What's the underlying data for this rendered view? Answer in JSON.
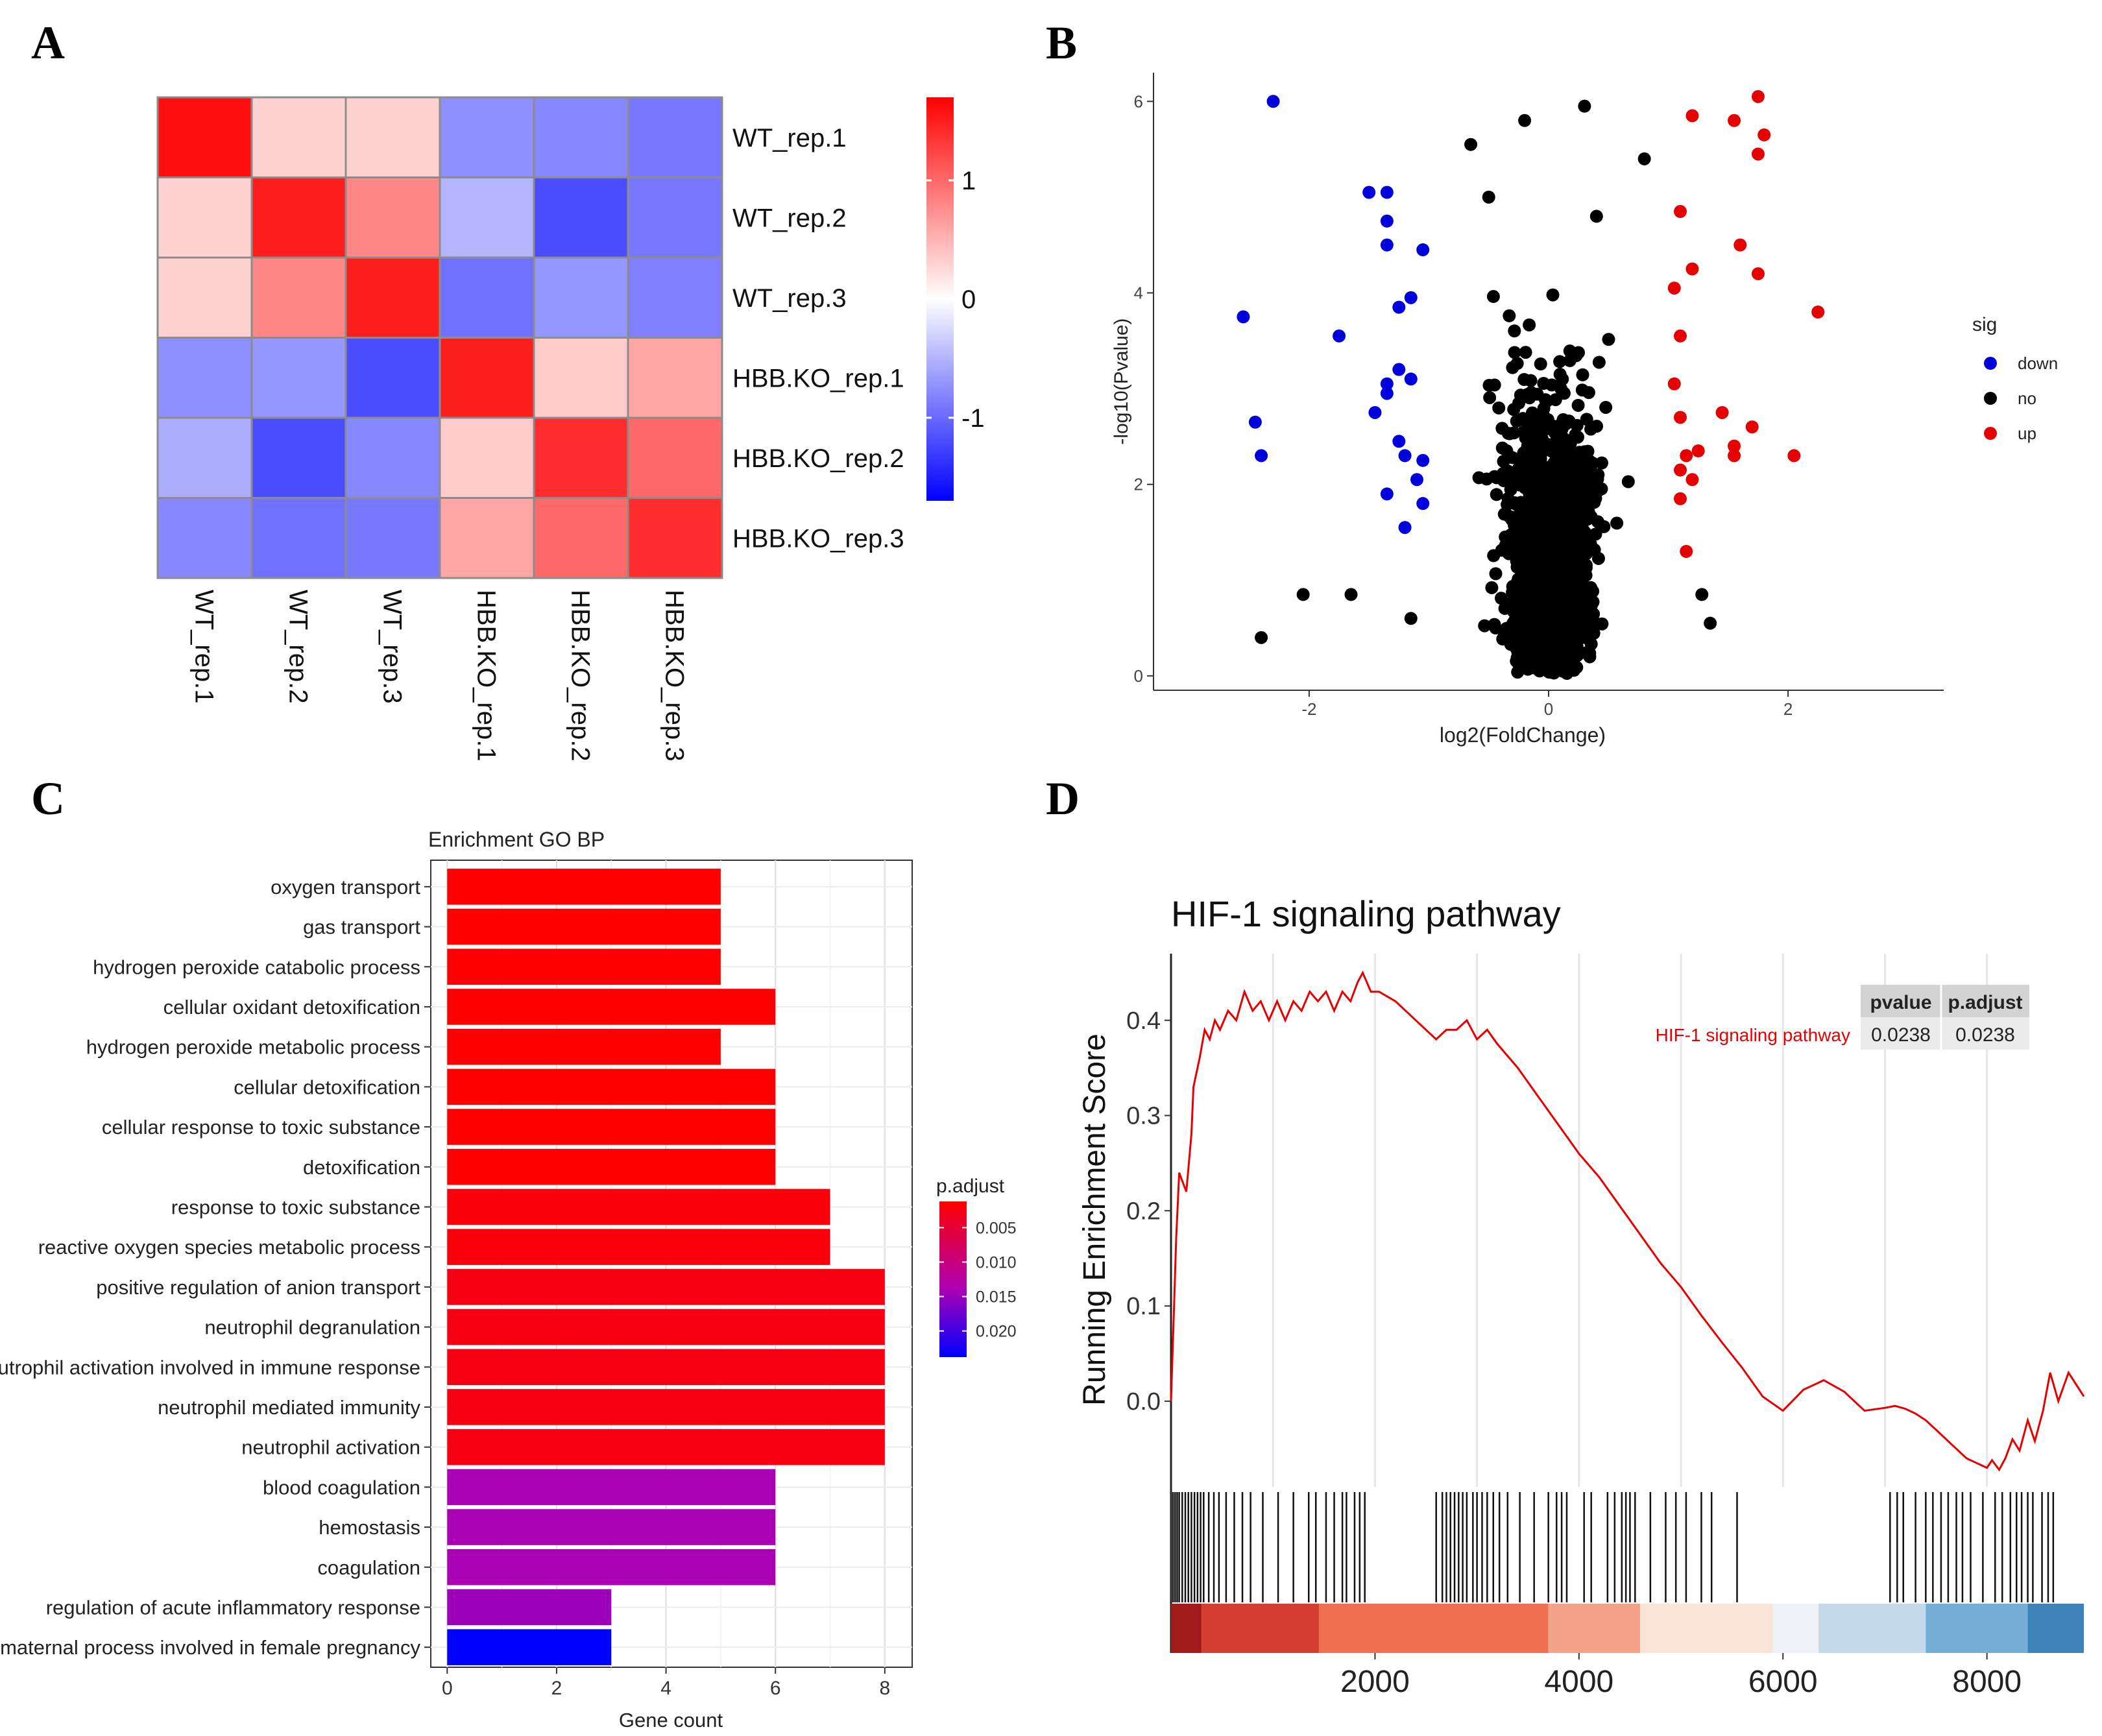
{
  "panel_labels": [
    "A",
    "B",
    "C",
    "D"
  ],
  "colors": {
    "heat_low": "#0000ff",
    "heat_mid": "#ffffff",
    "heat_high": "#ff0000",
    "down": "#0000dd",
    "no": "#000000",
    "up": "#e60000",
    "padj_high": "#ff0000",
    "padj_low": "#0000ff",
    "gsea_line": "#e60000"
  },
  "chart_data": [
    {
      "id": "A",
      "type": "heatmap",
      "title": "",
      "rows": [
        "WT_rep.1",
        "WT_rep.2",
        "WT_rep.3",
        "HBB.KO_rep.1",
        "HBB.KO_rep.2",
        "HBB.KO_rep.3"
      ],
      "cols": [
        "WT_rep.1",
        "WT_rep.2",
        "WT_rep.3",
        "HBB.KO_rep.1",
        "HBB.KO_rep.2",
        "HBB.KO_rep.3"
      ],
      "values": [
        [
          1.6,
          0.3,
          0.3,
          -0.75,
          -0.8,
          -0.9
        ],
        [
          0.3,
          1.5,
          0.8,
          -0.5,
          -1.2,
          -0.9
        ],
        [
          0.3,
          0.8,
          1.5,
          -0.95,
          -0.7,
          -0.85
        ],
        [
          -0.75,
          -0.7,
          -1.2,
          1.5,
          0.35,
          0.6
        ],
        [
          -0.55,
          -1.2,
          -0.8,
          0.35,
          1.4,
          1.0
        ],
        [
          -0.8,
          -0.95,
          -0.9,
          0.6,
          1.0,
          1.4
        ]
      ],
      "colorbar": {
        "range": [
          -1.7,
          1.7
        ],
        "ticks": [
          -1,
          0,
          1
        ],
        "tick_labels": [
          "-1",
          "0",
          "1"
        ]
      }
    },
    {
      "id": "B",
      "type": "scatter",
      "title": "",
      "xlabel": "log2(FoldChange)",
      "ylabel": "-log10(Pvalue)",
      "xlim": [
        -3.3,
        3.3
      ],
      "ylim": [
        -0.15,
        6.3
      ],
      "xticks": [
        -2,
        0,
        2
      ],
      "xtick_labels": [
        "-2",
        "0",
        "2"
      ],
      "yticks": [
        0,
        2,
        4,
        6
      ],
      "ytick_labels": [
        "0",
        "2",
        "4",
        "6"
      ],
      "legend": {
        "title": "sig",
        "position": "right",
        "entries": [
          "down",
          "no",
          "up"
        ]
      },
      "series": [
        {
          "name": "down",
          "points": [
            [
              -2.3,
              6.0
            ],
            [
              -1.5,
              5.05
            ],
            [
              -1.35,
              5.05
            ],
            [
              -1.35,
              4.75
            ],
            [
              -1.35,
              4.5
            ],
            [
              -1.05,
              4.45
            ],
            [
              -1.15,
              3.95
            ],
            [
              -1.25,
              3.85
            ],
            [
              -2.55,
              3.75
            ],
            [
              -1.75,
              3.55
            ],
            [
              -1.25,
              3.2
            ],
            [
              -1.35,
              3.05
            ],
            [
              -1.35,
              2.95
            ],
            [
              -1.45,
              2.75
            ],
            [
              -2.45,
              2.65
            ],
            [
              -1.25,
              2.45
            ],
            [
              -2.4,
              2.3
            ],
            [
              -1.05,
              2.25
            ],
            [
              -1.1,
              2.05
            ],
            [
              -1.35,
              1.9
            ],
            [
              -1.05,
              1.8
            ],
            [
              -1.2,
              1.55
            ],
            [
              -1.2,
              2.3
            ],
            [
              -1.15,
              3.1
            ]
          ]
        },
        {
          "name": "up",
          "points": [
            [
              1.75,
              6.05
            ],
            [
              1.2,
              5.85
            ],
            [
              1.55,
              5.8
            ],
            [
              1.8,
              5.65
            ],
            [
              1.75,
              5.45
            ],
            [
              1.1,
              4.85
            ],
            [
              1.6,
              4.5
            ],
            [
              1.75,
              4.2
            ],
            [
              1.2,
              4.25
            ],
            [
              1.05,
              4.05
            ],
            [
              2.25,
              3.8
            ],
            [
              1.1,
              3.55
            ],
            [
              1.05,
              3.05
            ],
            [
              1.1,
              2.7
            ],
            [
              1.45,
              2.75
            ],
            [
              1.7,
              2.6
            ],
            [
              1.55,
              2.4
            ],
            [
              1.25,
              2.35
            ],
            [
              1.15,
              2.3
            ],
            [
              1.1,
              2.15
            ],
            [
              1.2,
              2.05
            ],
            [
              2.05,
              2.3
            ],
            [
              1.55,
              2.3
            ],
            [
              1.1,
              1.85
            ],
            [
              1.15,
              1.3
            ]
          ]
        },
        {
          "name": "no",
          "generated": true,
          "n": 2200,
          "sample_points": [
            [
              -0.65,
              5.55
            ],
            [
              -0.2,
              5.8
            ],
            [
              0.3,
              5.95
            ],
            [
              -0.5,
              5.0
            ],
            [
              0.8,
              5.4
            ],
            [
              0.4,
              4.8
            ],
            [
              -2.05,
              0.85
            ],
            [
              -1.65,
              0.85
            ],
            [
              -2.4,
              0.4
            ],
            [
              -1.15,
              0.6
            ],
            [
              1.28,
              0.85
            ],
            [
              1.35,
              0.55
            ]
          ]
        }
      ]
    },
    {
      "id": "C",
      "type": "bar",
      "title": "Enrichment GO BP",
      "xlabel": "Gene count",
      "ylabel": "",
      "xlim": [
        -0.3,
        8.5
      ],
      "xticks": [
        0,
        2,
        4,
        6,
        8
      ],
      "xtick_labels": [
        "0",
        "2",
        "4",
        "6",
        "8"
      ],
      "categories": [
        "oxygen transport",
        "gas transport",
        "hydrogen peroxide catabolic process",
        "cellular oxidant detoxification",
        "hydrogen peroxide metabolic process",
        "cellular detoxification",
        "cellular response to toxic substance",
        "detoxification",
        "response to toxic substance",
        "reactive oxygen species metabolic process",
        "positive regulation of anion transport",
        "neutrophil degranulation",
        "neutrophil activation involved in immune response",
        "neutrophil mediated immunity",
        "neutrophil activation",
        "blood coagulation",
        "hemostasis",
        "coagulation",
        "regulation of acute inflammatory response",
        "maternal process involved in female pregnancy"
      ],
      "values": [
        5,
        5,
        5,
        6,
        5,
        6,
        6,
        6,
        7,
        7,
        8,
        8,
        8,
        8,
        8,
        6,
        6,
        6,
        3,
        3
      ],
      "p_adjust": [
        0.0012,
        0.0012,
        0.0012,
        0.0012,
        0.0012,
        0.0012,
        0.0012,
        0.0012,
        0.0018,
        0.0018,
        0.0022,
        0.0022,
        0.0022,
        0.0022,
        0.0022,
        0.0118,
        0.0118,
        0.0118,
        0.0128,
        0.0238
      ],
      "colorbar": {
        "title": "p.adjust",
        "range": [
          0.0012,
          0.0238
        ],
        "ticks": [
          0.005,
          0.01,
          0.015,
          0.02
        ],
        "tick_labels": [
          "0.005",
          "0.010",
          "0.015",
          "0.020"
        ]
      }
    },
    {
      "id": "D",
      "type": "line",
      "title": "HIF-1 signaling pathway",
      "xlabel": "",
      "ylabel": "Running Enrichment Score",
      "xlim": [
        0,
        8950
      ],
      "ylim": [
        -0.09,
        0.47
      ],
      "xticks": [
        2000,
        4000,
        6000,
        8000
      ],
      "xtick_labels": [
        "2000",
        "4000",
        "6000",
        "8000"
      ],
      "yticks": [
        0.0,
        0.1,
        0.2,
        0.3,
        0.4
      ],
      "ytick_labels": [
        "0.0",
        "0.1",
        "0.2",
        "0.3",
        "0.4"
      ],
      "series": [
        {
          "name": "HIF-1 signaling pathway",
          "x": [
            0,
            30,
            50,
            80,
            150,
            200,
            220,
            280,
            330,
            380,
            430,
            480,
            560,
            640,
            720,
            800,
            880,
            960,
            1040,
            1120,
            1200,
            1280,
            1360,
            1440,
            1520,
            1600,
            1680,
            1760,
            1830,
            1880,
            1960,
            2040,
            2200,
            2400,
            2600,
            2700,
            2800,
            2900,
            3000,
            3100,
            3200,
            3400,
            3600,
            3800,
            4000,
            4200,
            4400,
            4600,
            4800,
            5000,
            5200,
            5400,
            5600,
            5800,
            6000,
            6200,
            6400,
            6600,
            6800,
            7000,
            7100,
            7200,
            7300,
            7400,
            7500,
            7600,
            7700,
            7800,
            7900,
            8000,
            8050,
            8120,
            8180,
            8250,
            8320,
            8400,
            8470,
            8550,
            8620,
            8700,
            8800,
            8950
          ],
          "y": [
            0.0,
            0.1,
            0.17,
            0.24,
            0.22,
            0.28,
            0.33,
            0.36,
            0.39,
            0.38,
            0.4,
            0.39,
            0.41,
            0.4,
            0.43,
            0.41,
            0.42,
            0.4,
            0.42,
            0.4,
            0.42,
            0.41,
            0.43,
            0.42,
            0.43,
            0.41,
            0.43,
            0.42,
            0.44,
            0.45,
            0.43,
            0.43,
            0.42,
            0.4,
            0.38,
            0.39,
            0.39,
            0.4,
            0.38,
            0.39,
            0.375,
            0.35,
            0.32,
            0.29,
            0.26,
            0.235,
            0.205,
            0.175,
            0.145,
            0.12,
            0.09,
            0.062,
            0.035,
            0.005,
            -0.01,
            0.012,
            0.022,
            0.01,
            -0.01,
            -0.007,
            -0.005,
            -0.008,
            -0.013,
            -0.02,
            -0.03,
            -0.04,
            -0.05,
            -0.06,
            -0.065,
            -0.07,
            -0.062,
            -0.072,
            -0.06,
            -0.04,
            -0.052,
            -0.02,
            -0.042,
            -0.01,
            0.03,
            0.0,
            0.03,
            0.005
          ]
        }
      ],
      "hits": [
        20,
        40,
        60,
        80,
        110,
        140,
        170,
        200,
        230,
        260,
        290,
        320,
        370,
        420,
        470,
        540,
        620,
        700,
        780,
        900,
        1050,
        1200,
        1350,
        1420,
        1520,
        1600,
        1680,
        1720,
        1800,
        1850,
        1900,
        2600,
        2660,
        2700,
        2740,
        2780,
        2820,
        2860,
        2900,
        2960,
        3000,
        3050,
        3100,
        3160,
        3220,
        3300,
        3420,
        3560,
        3700,
        3780,
        3830,
        3880,
        4050,
        4120,
        4280,
        4350,
        4420,
        4460,
        4500,
        4550,
        4700,
        4850,
        4950,
        5050,
        5200,
        5300,
        5550,
        7050,
        7120,
        7180,
        7300,
        7400,
        7470,
        7550,
        7620,
        7700,
        7760,
        7840,
        7960,
        8080,
        8150,
        8230,
        8290,
        8340,
        8400,
        8450,
        8540,
        8600,
        8650
      ],
      "ranking_bar": [
        {
          "start": 0,
          "end": 300,
          "color": "#a31a1a"
        },
        {
          "start": 300,
          "end": 1450,
          "color": "#d43d2f"
        },
        {
          "start": 1450,
          "end": 3700,
          "color": "#ee7051"
        },
        {
          "start": 3700,
          "end": 4600,
          "color": "#f4a48a"
        },
        {
          "start": 4600,
          "end": 5900,
          "color": "#fae4d8"
        },
        {
          "start": 5900,
          "end": 6350,
          "color": "#eef1f6"
        },
        {
          "start": 6350,
          "end": 7400,
          "color": "#c3d9ea"
        },
        {
          "start": 7400,
          "end": 8400,
          "color": "#74aed6"
        },
        {
          "start": 8400,
          "end": 8950,
          "color": "#3d83ba"
        }
      ],
      "stats_table": {
        "headers": [
          "pvalue",
          "p.adjust"
        ],
        "row_label": "HIF-1 signaling pathway",
        "values": [
          "0.0238",
          "0.0238"
        ]
      }
    }
  ]
}
